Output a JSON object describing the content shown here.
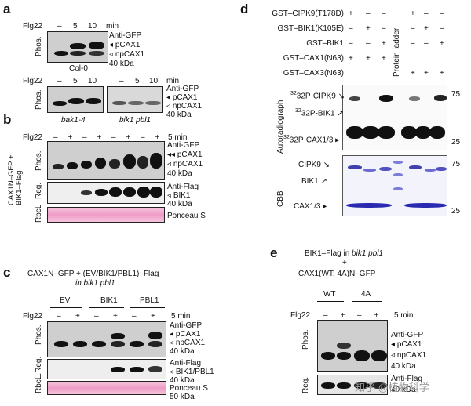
{
  "panels": {
    "a": {
      "letter": "a",
      "treatment_label": "Flg22",
      "time_top": [
        "–",
        "5",
        "10",
        "min"
      ],
      "rows": [
        "Phos."
      ],
      "right_labels": [
        "Anti-GFP",
        "pCAX1",
        "npCAX1",
        "40 kDa"
      ],
      "genotype_wt": "Col-0",
      "time_bottom_left": [
        "–",
        "5",
        "10"
      ],
      "time_bottom_right": [
        "–",
        "5",
        "10",
        "min"
      ],
      "right_labels_bottom": [
        "Anti-GFP",
        "pCAX1",
        "npCAX1",
        "40 kDa"
      ],
      "genotype_left": "bak1-4",
      "genotype_right": "bik1 pbl1"
    },
    "b": {
      "letter": "b",
      "treatment_label": "Flg22",
      "signs": [
        "–",
        "+",
        "–",
        "+",
        "–",
        "+",
        "–",
        "+"
      ],
      "time_unit": "5 min",
      "side_label": "CAX1N–GFP +\nBIK1–Flag",
      "rows": [
        "Phos.",
        "Reg.",
        "RbcL"
      ],
      "phos_labels": [
        "Anti-GFP",
        "pCAX1",
        "npCAX1",
        "40 kDa"
      ],
      "reg_labels": [
        "Anti-Flag",
        "BIK1",
        "40 kDa"
      ],
      "rbcl_label": "Ponceau S"
    },
    "c": {
      "letter": "c",
      "title_line1": "CAX1N–GFP + (EV/BIK1/PBL1)–Flag",
      "title_line2": "in bik1 pbl1",
      "groups": [
        "EV",
        "BIK1",
        "PBL1"
      ],
      "treatment_label": "Flg22",
      "signs": [
        "–",
        "+",
        "–",
        "+",
        "–",
        "+"
      ],
      "time_unit": "5 min",
      "rows": [
        "Phos.",
        "Reg.",
        "RbcL"
      ],
      "phos_labels": [
        "Anti-GFP",
        "pCAX1",
        "npCAX1",
        "40 kDa"
      ],
      "reg_labels": [
        "Anti-Flag",
        "BIK1/PBL1",
        "40 kDa"
      ],
      "rbcl_labels": [
        "Ponceau S",
        "50 kDa"
      ]
    },
    "d": {
      "letter": "d",
      "conditions": [
        {
          "label": "GST–CIPK9(T178D)",
          "signs": [
            "+",
            "–",
            "–",
            "+",
            "–",
            "–"
          ]
        },
        {
          "label": "GST–BIK1(K105E)",
          "signs": [
            "–",
            "+",
            "–",
            "–",
            "+",
            "–"
          ]
        },
        {
          "label": "GST–BIK1",
          "signs": [
            "–",
            "–",
            "+",
            "–",
            "–",
            "+"
          ]
        },
        {
          "label": "GST–CAX1(N63)",
          "signs": [
            "+",
            "+",
            "+",
            "",
            "",
            ""
          ]
        },
        {
          "label": "GST–CAX3(N63)",
          "signs": [
            "",
            "",
            "",
            "+",
            "+",
            "+"
          ]
        }
      ],
      "ladder_label": "Protein ladder",
      "autorad_label": "Autoradiograph",
      "autorad_bands": [
        "32P-CIPK9",
        "32P-BIK1",
        "32P-CAX1/3"
      ],
      "autorad_markers": [
        "75",
        "25"
      ],
      "cbb_label": "CBB",
      "cbb_bands": [
        "CIPK9",
        "BIK1",
        "CAX1/3"
      ],
      "cbb_markers": [
        "75",
        "25"
      ]
    },
    "e": {
      "letter": "e",
      "title_line1": "BIK1–Flag in bik1 pbl1",
      "title_plus": "+",
      "title_line2": "CAX1(WT; 4A)N–GFP",
      "groups": [
        "WT",
        "4A"
      ],
      "treatment_label": "Flg22",
      "signs": [
        "–",
        "+",
        "–",
        "+"
      ],
      "time_unit": "5 min",
      "rows": [
        "Phos.",
        "Reg."
      ],
      "phos_labels": [
        "Anti-GFP",
        "pCAX1",
        "npCAX1",
        "40 kDa"
      ],
      "reg_labels": [
        "Anti-Flag",
        "40 kDa"
      ]
    }
  },
  "watermark": "知乎 @植物科学"
}
